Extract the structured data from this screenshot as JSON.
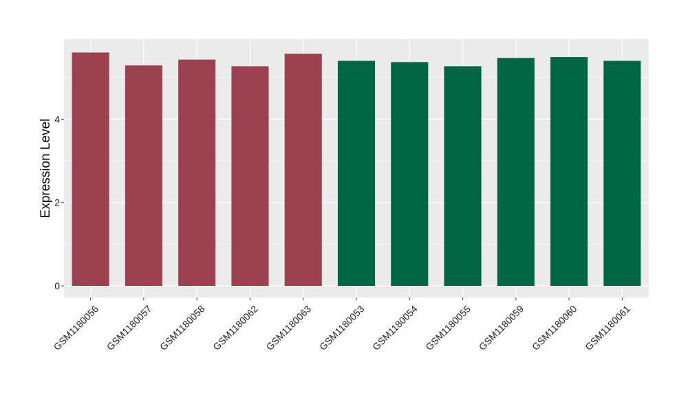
{
  "chart_data": {
    "type": "bar",
    "title": "",
    "xlabel": "",
    "ylabel": "Expression Level",
    "ylim": [
      -0.28,
      5.92
    ],
    "yticks": [
      0,
      2,
      4
    ],
    "grid": true,
    "legend": "none",
    "categories": [
      "GSM1180056",
      "GSM1180057",
      "GSM1180058",
      "GSM1180062",
      "GSM1180063",
      "GSM1180053",
      "GSM1180054",
      "GSM1180055",
      "GSM1180059",
      "GSM1180060",
      "GSM1180061"
    ],
    "values": [
      5.6,
      5.29,
      5.43,
      5.27,
      5.57,
      5.4,
      5.37,
      5.27,
      5.47,
      5.49,
      5.4
    ],
    "groups": [
      0,
      0,
      0,
      0,
      0,
      1,
      1,
      1,
      1,
      1,
      1
    ],
    "group_colors": [
      "#9b4150",
      "#006644"
    ],
    "panel_background": "#ebebeb",
    "gridline_color": "#ffffff"
  }
}
